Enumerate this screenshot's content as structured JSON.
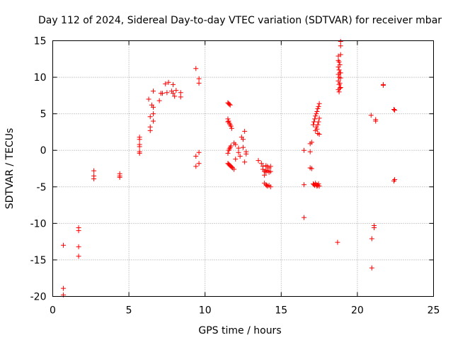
{
  "chart_data": {
    "type": "scatter",
    "title": "Day 112 of 2024, Sidereal Day-to-day VTEC variation (SDTVAR) for receiver mbar",
    "xlabel": "GPS time / hours",
    "ylabel": "SDTVAR / TECUs",
    "xlim": [
      0,
      25
    ],
    "ylim": [
      -20,
      15
    ],
    "xticks": [
      "0",
      "5",
      "10",
      "15",
      "20",
      "25"
    ],
    "yticks": [
      "-20",
      "-15",
      "-10",
      "-5",
      "0",
      "5",
      "10",
      "15"
    ],
    "grid": true,
    "marker": "+",
    "color": "#ff0000",
    "series": [
      {
        "name": "SDTVAR",
        "points": [
          [
            0.7,
            -13.0
          ],
          [
            0.7,
            -18.9
          ],
          [
            0.7,
            -19.8
          ],
          [
            1.7,
            -10.6
          ],
          [
            1.7,
            -11.0
          ],
          [
            1.7,
            -13.2
          ],
          [
            1.7,
            -14.5
          ],
          [
            2.7,
            -2.8
          ],
          [
            2.7,
            -3.5
          ],
          [
            2.7,
            -3.9
          ],
          [
            4.4,
            -3.2
          ],
          [
            4.4,
            -3.5
          ],
          [
            4.4,
            -3.7
          ],
          [
            5.7,
            1.8
          ],
          [
            5.7,
            1.5
          ],
          [
            5.7,
            0.8
          ],
          [
            5.7,
            0.5
          ],
          [
            5.7,
            -0.2
          ],
          [
            5.7,
            -0.4
          ],
          [
            6.3,
            7.0
          ],
          [
            6.4,
            4.6
          ],
          [
            6.4,
            3.2
          ],
          [
            6.4,
            2.7
          ],
          [
            6.5,
            6.2
          ],
          [
            6.6,
            5.9
          ],
          [
            6.6,
            5.0
          ],
          [
            6.6,
            4.0
          ],
          [
            6.6,
            8.1
          ],
          [
            7.0,
            6.8
          ],
          [
            7.1,
            7.8
          ],
          [
            7.2,
            7.8
          ],
          [
            7.4,
            9.1
          ],
          [
            7.6,
            9.3
          ],
          [
            7.5,
            7.9
          ],
          [
            7.8,
            8.1
          ],
          [
            7.9,
            7.8
          ],
          [
            7.9,
            9.0
          ],
          [
            8.0,
            7.4
          ],
          [
            8.1,
            8.2
          ],
          [
            8.4,
            7.3
          ],
          [
            8.4,
            7.9
          ],
          [
            9.4,
            11.2
          ],
          [
            9.4,
            -0.8
          ],
          [
            9.4,
            -2.2
          ],
          [
            9.6,
            9.8
          ],
          [
            9.6,
            9.2
          ],
          [
            9.6,
            -0.3
          ],
          [
            9.6,
            -1.8
          ],
          [
            11.5,
            6.5
          ],
          [
            11.5,
            4.3
          ],
          [
            11.5,
            3.9
          ],
          [
            11.5,
            -0.4
          ],
          [
            11.5,
            -1.8
          ],
          [
            11.55,
            6.4
          ],
          [
            11.55,
            4.0
          ],
          [
            11.55,
            0.0
          ],
          [
            11.55,
            -1.9
          ],
          [
            11.6,
            6.3
          ],
          [
            11.6,
            3.7
          ],
          [
            11.6,
            0.2
          ],
          [
            11.6,
            -2.0
          ],
          [
            11.65,
            6.2
          ],
          [
            11.65,
            3.5
          ],
          [
            11.65,
            0.4
          ],
          [
            11.65,
            -2.1
          ],
          [
            11.7,
            3.3
          ],
          [
            11.7,
            0.6
          ],
          [
            11.7,
            -2.2
          ],
          [
            11.75,
            3.0
          ],
          [
            11.75,
            -2.3
          ],
          [
            11.8,
            -2.4
          ],
          [
            11.9,
            1.0
          ],
          [
            11.9,
            -2.6
          ],
          [
            12.0,
            0.8
          ],
          [
            12.0,
            -1.2
          ],
          [
            12.2,
            0.3
          ],
          [
            12.2,
            -0.3
          ],
          [
            12.3,
            -0.8
          ],
          [
            12.4,
            1.8
          ],
          [
            12.5,
            1.5
          ],
          [
            12.5,
            0.4
          ],
          [
            12.6,
            2.6
          ],
          [
            12.6,
            -1.6
          ],
          [
            12.7,
            -0.5
          ],
          [
            12.7,
            -0.2
          ],
          [
            13.5,
            -1.4
          ],
          [
            13.7,
            -1.8
          ],
          [
            13.8,
            -2.2
          ],
          [
            13.8,
            -2.6
          ],
          [
            13.9,
            -2.9
          ],
          [
            13.9,
            -3.4
          ],
          [
            13.9,
            -4.5
          ],
          [
            14.0,
            -2.1
          ],
          [
            14.0,
            -2.7
          ],
          [
            14.0,
            -3.0
          ],
          [
            14.0,
            -4.7
          ],
          [
            14.05,
            -4.8
          ],
          [
            14.1,
            -2.2
          ],
          [
            14.1,
            -2.8
          ],
          [
            14.1,
            -4.9
          ],
          [
            14.2,
            -2.4
          ],
          [
            14.2,
            -3.0
          ],
          [
            14.2,
            -4.8
          ],
          [
            14.3,
            -2.2
          ],
          [
            14.3,
            -2.9
          ],
          [
            14.3,
            -5.0
          ],
          [
            16.5,
            0.0
          ],
          [
            16.5,
            -4.7
          ],
          [
            16.5,
            -9.2
          ],
          [
            16.9,
            -0.2
          ],
          [
            16.9,
            -2.4
          ],
          [
            16.9,
            0.9
          ],
          [
            17.0,
            1.1
          ],
          [
            17.0,
            -2.5
          ],
          [
            17.1,
            3.5
          ],
          [
            17.1,
            -4.6
          ],
          [
            17.15,
            3.9
          ],
          [
            17.15,
            -4.7
          ],
          [
            17.2,
            4.3
          ],
          [
            17.2,
            -4.8
          ],
          [
            17.25,
            4.7
          ],
          [
            17.25,
            2.7
          ],
          [
            17.25,
            -4.5
          ],
          [
            17.3,
            5.0
          ],
          [
            17.3,
            3.2
          ],
          [
            17.3,
            -4.7
          ],
          [
            17.35,
            5.3
          ],
          [
            17.35,
            2.9
          ],
          [
            17.35,
            -4.9
          ],
          [
            17.4,
            5.7
          ],
          [
            17.4,
            3.5
          ],
          [
            17.4,
            2.3
          ],
          [
            17.4,
            -4.8
          ],
          [
            17.45,
            6.0
          ],
          [
            17.45,
            3.9
          ],
          [
            17.45,
            -4.6
          ],
          [
            17.5,
            6.4
          ],
          [
            17.5,
            4.4
          ],
          [
            17.5,
            2.2
          ],
          [
            17.5,
            -4.9
          ],
          [
            18.7,
            -12.6
          ],
          [
            18.75,
            12.9
          ],
          [
            18.75,
            12.3
          ],
          [
            18.75,
            11.4
          ],
          [
            18.75,
            10.4
          ],
          [
            18.75,
            9.5
          ],
          [
            18.75,
            8.3
          ],
          [
            18.8,
            12.1
          ],
          [
            18.8,
            11.0
          ],
          [
            18.8,
            10.0
          ],
          [
            18.8,
            9.0
          ],
          [
            18.8,
            8.0
          ],
          [
            18.85,
            11.7
          ],
          [
            18.85,
            10.6
          ],
          [
            18.85,
            9.2
          ],
          [
            18.85,
            8.5
          ],
          [
            18.9,
            14.9
          ],
          [
            18.9,
            14.3
          ],
          [
            18.9,
            13.1
          ],
          [
            18.9,
            10.6
          ],
          [
            18.9,
            9.9
          ],
          [
            18.9,
            8.6
          ],
          [
            20.9,
            4.8
          ],
          [
            20.95,
            -12.1
          ],
          [
            20.95,
            -16.1
          ],
          [
            21.1,
            -10.3
          ],
          [
            21.1,
            -10.6
          ],
          [
            21.2,
            4.2
          ],
          [
            21.2,
            4.0
          ],
          [
            21.7,
            9.0
          ],
          [
            21.7,
            8.9
          ],
          [
            22.4,
            5.6
          ],
          [
            22.45,
            5.5
          ],
          [
            22.4,
            -4.2
          ],
          [
            22.45,
            -4.0
          ]
        ]
      }
    ]
  }
}
